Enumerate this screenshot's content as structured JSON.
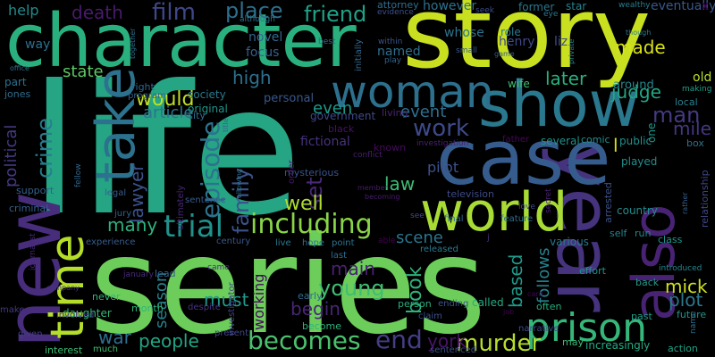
{
  "words": [
    {
      "text": "life",
      "color": "#26a584"
    },
    {
      "text": "series",
      "color": "#6ccd5a"
    },
    {
      "text": "story",
      "color": "#c8e020"
    },
    {
      "text": "character",
      "color": "#2ab07f"
    },
    {
      "text": "year",
      "color": "#46337e"
    },
    {
      "text": "case",
      "color": "#365c8d"
    },
    {
      "text": "new",
      "color": "#472d7b"
    },
    {
      "text": "world",
      "color": "#a8db34"
    },
    {
      "text": "show",
      "color": "#2a788e"
    },
    {
      "text": "take",
      "color": "#2c728e"
    },
    {
      "text": "woman",
      "color": "#2d708e"
    },
    {
      "text": "also",
      "color": "#482374"
    },
    {
      "text": "time",
      "color": "#b5de2b"
    },
    {
      "text": "prison",
      "color": "#35b779"
    },
    {
      "text": "including",
      "color": "#89d548"
    },
    {
      "text": "trial",
      "color": "#21918c"
    },
    {
      "text": "becomes",
      "color": "#4ac16d"
    },
    {
      "text": "episode",
      "color": "#2c738e"
    },
    {
      "text": "family",
      "color": "#3b528b"
    },
    {
      "text": "murder",
      "color": "#b5de2b"
    },
    {
      "text": "work",
      "color": "#3e4989"
    },
    {
      "text": "man",
      "color": "#443a83"
    },
    {
      "text": "set",
      "color": "#482878"
    },
    {
      "text": "end",
      "color": "#433e85"
    },
    {
      "text": "young",
      "color": "#40bd72"
    },
    {
      "text": "people",
      "color": "#21a685"
    },
    {
      "text": "plot",
      "color": "#2a788e"
    },
    {
      "text": "book",
      "color": "#2db27d"
    },
    {
      "text": "main",
      "color": "#482173"
    },
    {
      "text": "film",
      "color": "#3f4788"
    },
    {
      "text": "place",
      "color": "#2d708e"
    },
    {
      "text": "friend",
      "color": "#1fa187"
    },
    {
      "text": "death",
      "color": "#481a6c"
    },
    {
      "text": "crime",
      "color": "#287d8e"
    },
    {
      "text": "lawyer",
      "color": "#3b528b"
    },
    {
      "text": "political",
      "color": "#443983"
    },
    {
      "text": "would",
      "color": "#c2df23"
    },
    {
      "text": "high",
      "color": "#2e6f8e"
    },
    {
      "text": "article",
      "color": "#2c738e"
    },
    {
      "text": "event",
      "color": "#2e6e8e"
    },
    {
      "text": "judge",
      "color": "#22a785"
    },
    {
      "text": "made",
      "color": "#d8e219"
    },
    {
      "text": "later",
      "color": "#2ab07f"
    },
    {
      "text": "many",
      "color": "#2db27d"
    },
    {
      "text": "law",
      "color": "#3dbc74"
    },
    {
      "text": "well",
      "color": "#addc30"
    },
    {
      "text": "mile",
      "color": "#453781"
    },
    {
      "text": "season",
      "color": "#25838e"
    },
    {
      "text": "must",
      "color": "#1f998a"
    },
    {
      "text": "begin",
      "color": "#482576"
    },
    {
      "text": "based",
      "color": "#1f9a8a"
    },
    {
      "text": "follows",
      "color": "#26828e"
    },
    {
      "text": "mick",
      "color": "#d0e11c"
    },
    {
      "text": "war",
      "color": "#2e6e8e"
    },
    {
      "text": "working",
      "color": "#46085c"
    },
    {
      "text": "york",
      "color": "#481467"
    },
    {
      "text": "scene",
      "color": "#2b758e"
    },
    {
      "text": "even",
      "color": "#1f998a"
    },
    {
      "text": "state",
      "color": "#5cc863"
    },
    {
      "text": "help",
      "color": "#238a8d"
    },
    {
      "text": "old",
      "color": "#b8de29"
    },
    {
      "text": "around",
      "color": "#23898e"
    },
    {
      "text": "fictional",
      "color": "#46327e"
    },
    {
      "text": "original",
      "color": "#1f958b"
    },
    {
      "text": "society",
      "color": "#2a788e"
    },
    {
      "text": "city",
      "color": "#306a8e"
    },
    {
      "text": "government",
      "color": "#3e4989"
    },
    {
      "text": "personal",
      "color": "#38588c"
    },
    {
      "text": "focus",
      "color": "#35608d"
    },
    {
      "text": "novel",
      "color": "#31688e"
    },
    {
      "text": "named",
      "color": "#2e6e8e"
    },
    {
      "text": "however",
      "color": "#2d718e"
    },
    {
      "text": "whose",
      "color": "#2c738e"
    },
    {
      "text": "role",
      "color": "#297a8e"
    },
    {
      "text": "star",
      "color": "#27808e"
    },
    {
      "text": "former",
      "color": "#2a788e"
    },
    {
      "text": "eventually",
      "color": "#38588c"
    },
    {
      "text": "henry",
      "color": "#3f4889"
    },
    {
      "text": "liz",
      "color": "#3d4d8a"
    },
    {
      "text": "attorney",
      "color": "#2e6e8e"
    },
    {
      "text": "jones",
      "color": "#2f6c8e"
    },
    {
      "text": "part",
      "color": "#2d718e"
    },
    {
      "text": "way",
      "color": "#2e6e8e"
    },
    {
      "text": "right",
      "color": "#31668e"
    },
    {
      "text": "program",
      "color": "#33628d"
    },
    {
      "text": "mysterious",
      "color": "#3a538b"
    },
    {
      "text": "pilot",
      "color": "#3b528b"
    },
    {
      "text": "television",
      "color": "#3e4a89"
    },
    {
      "text": "support",
      "color": "#34618d"
    },
    {
      "text": "criminal",
      "color": "#34608d"
    },
    {
      "text": "jury",
      "color": "#355f8d"
    },
    {
      "text": "experience",
      "color": "#355e8d"
    },
    {
      "text": "lead",
      "color": "#33628d"
    },
    {
      "text": "early",
      "color": "#2f6b8e"
    },
    {
      "text": "last",
      "color": "#2f6c8e"
    },
    {
      "text": "point",
      "color": "#2c728e"
    },
    {
      "text": "hope",
      "color": "#2b748e"
    },
    {
      "text": "live",
      "color": "#2a788e"
    },
    {
      "text": "released",
      "color": "#29798e"
    },
    {
      "text": "various",
      "color": "#2a778e"
    },
    {
      "text": "self",
      "color": "#25848e"
    },
    {
      "text": "run",
      "color": "#23898e"
    },
    {
      "text": "country",
      "color": "#228c8d"
    },
    {
      "text": "played",
      "color": "#228d8d"
    },
    {
      "text": "comic",
      "color": "#21908d"
    },
    {
      "text": "public",
      "color": "#21918c"
    },
    {
      "text": "several",
      "color": "#20928c"
    },
    {
      "text": "effort",
      "color": "#1f958b"
    },
    {
      "text": "class",
      "color": "#1f968b"
    },
    {
      "text": "future",
      "color": "#1f978b"
    },
    {
      "text": "back",
      "color": "#1e9b8a"
    },
    {
      "text": "past",
      "color": "#1e9c89"
    },
    {
      "text": "action",
      "color": "#20a386"
    },
    {
      "text": "increasingly",
      "color": "#24aa83"
    },
    {
      "text": "called",
      "color": "#25ab82"
    },
    {
      "text": "often",
      "color": "#27ad81"
    },
    {
      "text": "person",
      "color": "#29af7f"
    },
    {
      "text": "become",
      "color": "#2db27d"
    },
    {
      "text": "month",
      "color": "#2fb47c"
    },
    {
      "text": "daughter",
      "color": "#32b67a"
    },
    {
      "text": "never",
      "color": "#34b679"
    },
    {
      "text": "may",
      "color": "#3aba76"
    },
    {
      "text": "interest",
      "color": "#3dbc74"
    },
    {
      "text": "much",
      "color": "#40bd72"
    },
    {
      "text": "wife",
      "color": "#42be71"
    },
    {
      "text": "box",
      "color": "#2d718e"
    },
    {
      "text": "local",
      "color": "#27808e"
    },
    {
      "text": "introduced",
      "color": "#24868e"
    },
    {
      "text": "making",
      "color": "#1fa088"
    },
    {
      "text": "relationship",
      "color": "#3f4788"
    },
    {
      "text": "arrested",
      "color": "#3c4f8a"
    },
    {
      "text": "feature",
      "color": "#2e6f8e"
    },
    {
      "text": "final",
      "color": "#2f6b8e"
    },
    {
      "text": "fellow",
      "color": "#31678e"
    },
    {
      "text": "legal",
      "color": "#365d8d"
    },
    {
      "text": "sentence",
      "color": "#375a8c"
    },
    {
      "text": "century",
      "color": "#38598c"
    },
    {
      "text": "ending",
      "color": "#3a548c"
    },
    {
      "text": "claim",
      "color": "#3b528b"
    },
    {
      "text": "sentenced",
      "color": "#3d4e8a"
    },
    {
      "text": "narrative",
      "color": "#3e4c8a"
    },
    {
      "text": "present",
      "color": "#404588"
    },
    {
      "text": "investigator",
      "color": "#414287"
    },
    {
      "text": "given",
      "color": "#433e85"
    },
    {
      "text": "make",
      "color": "#443983"
    },
    {
      "text": "involved",
      "color": "#453882"
    },
    {
      "text": "company",
      "color": "#463480"
    },
    {
      "text": "despite",
      "color": "#46327e"
    },
    {
      "text": "came",
      "color": "#472e7c"
    },
    {
      "text": "january",
      "color": "#472c7a"
    },
    {
      "text": "journalist",
      "color": "#482979"
    },
    {
      "text": "ultimately",
      "color": "#482677"
    },
    {
      "text": "living",
      "color": "#482475"
    },
    {
      "text": "investigation",
      "color": "#482173"
    },
    {
      "text": "conflict",
      "color": "#481f70"
    },
    {
      "text": "member",
      "color": "#481d6f"
    },
    {
      "text": "becoming",
      "color": "#481b6d"
    },
    {
      "text": "order",
      "color": "#48186a"
    },
    {
      "text": "black",
      "color": "#471365"
    },
    {
      "text": "known",
      "color": "#460a5d"
    },
    {
      "text": "father",
      "color": "#46085c"
    },
    {
      "text": "card",
      "color": "#450559"
    },
    {
      "text": "job",
      "color": "#440256"
    },
    {
      "text": "able",
      "color": "#440154"
    },
    {
      "text": "see",
      "color": "#3e4a89"
    },
    {
      "text": "seek",
      "color": "#3d4d8a"
    },
    {
      "text": "evidence",
      "color": "#3b518b"
    },
    {
      "text": "within",
      "color": "#39558c"
    },
    {
      "text": "small",
      "color": "#37598c"
    },
    {
      "text": "game",
      "color": "#355e8d"
    },
    {
      "text": "play",
      "color": "#32648e"
    },
    {
      "text": "initially",
      "color": "#31688e"
    },
    {
      "text": "best",
      "color": "#2f6b8e"
    },
    {
      "text": "together",
      "color": "#2e6f8e"
    },
    {
      "text": "office",
      "color": "#2c728e"
    },
    {
      "text": "although",
      "color": "#2b758e"
    },
    {
      "text": "eye",
      "color": "#2a788e"
    },
    {
      "text": "though",
      "color": "#297b8e"
    },
    {
      "text": "wealthy",
      "color": "#287d8e"
    },
    {
      "text": "private",
      "color": "#26818e"
    },
    {
      "text": "x",
      "color": "#440256"
    },
    {
      "text": "one",
      "color": "#1f978b"
    },
    {
      "text": "l",
      "color": "#d5e21a"
    },
    {
      "text": "love",
      "color": "#3e4989"
    },
    {
      "text": "title",
      "color": "#33638d"
    },
    {
      "text": "following",
      "color": "#2e6e8e"
    },
    {
      "text": "secret",
      "color": "#482173"
    },
    {
      "text": "name",
      "color": "#2d708e"
    },
    {
      "text": "rather",
      "color": "#35608d"
    },
    {
      "text": "j",
      "color": "#472d7b"
    }
  ]
}
